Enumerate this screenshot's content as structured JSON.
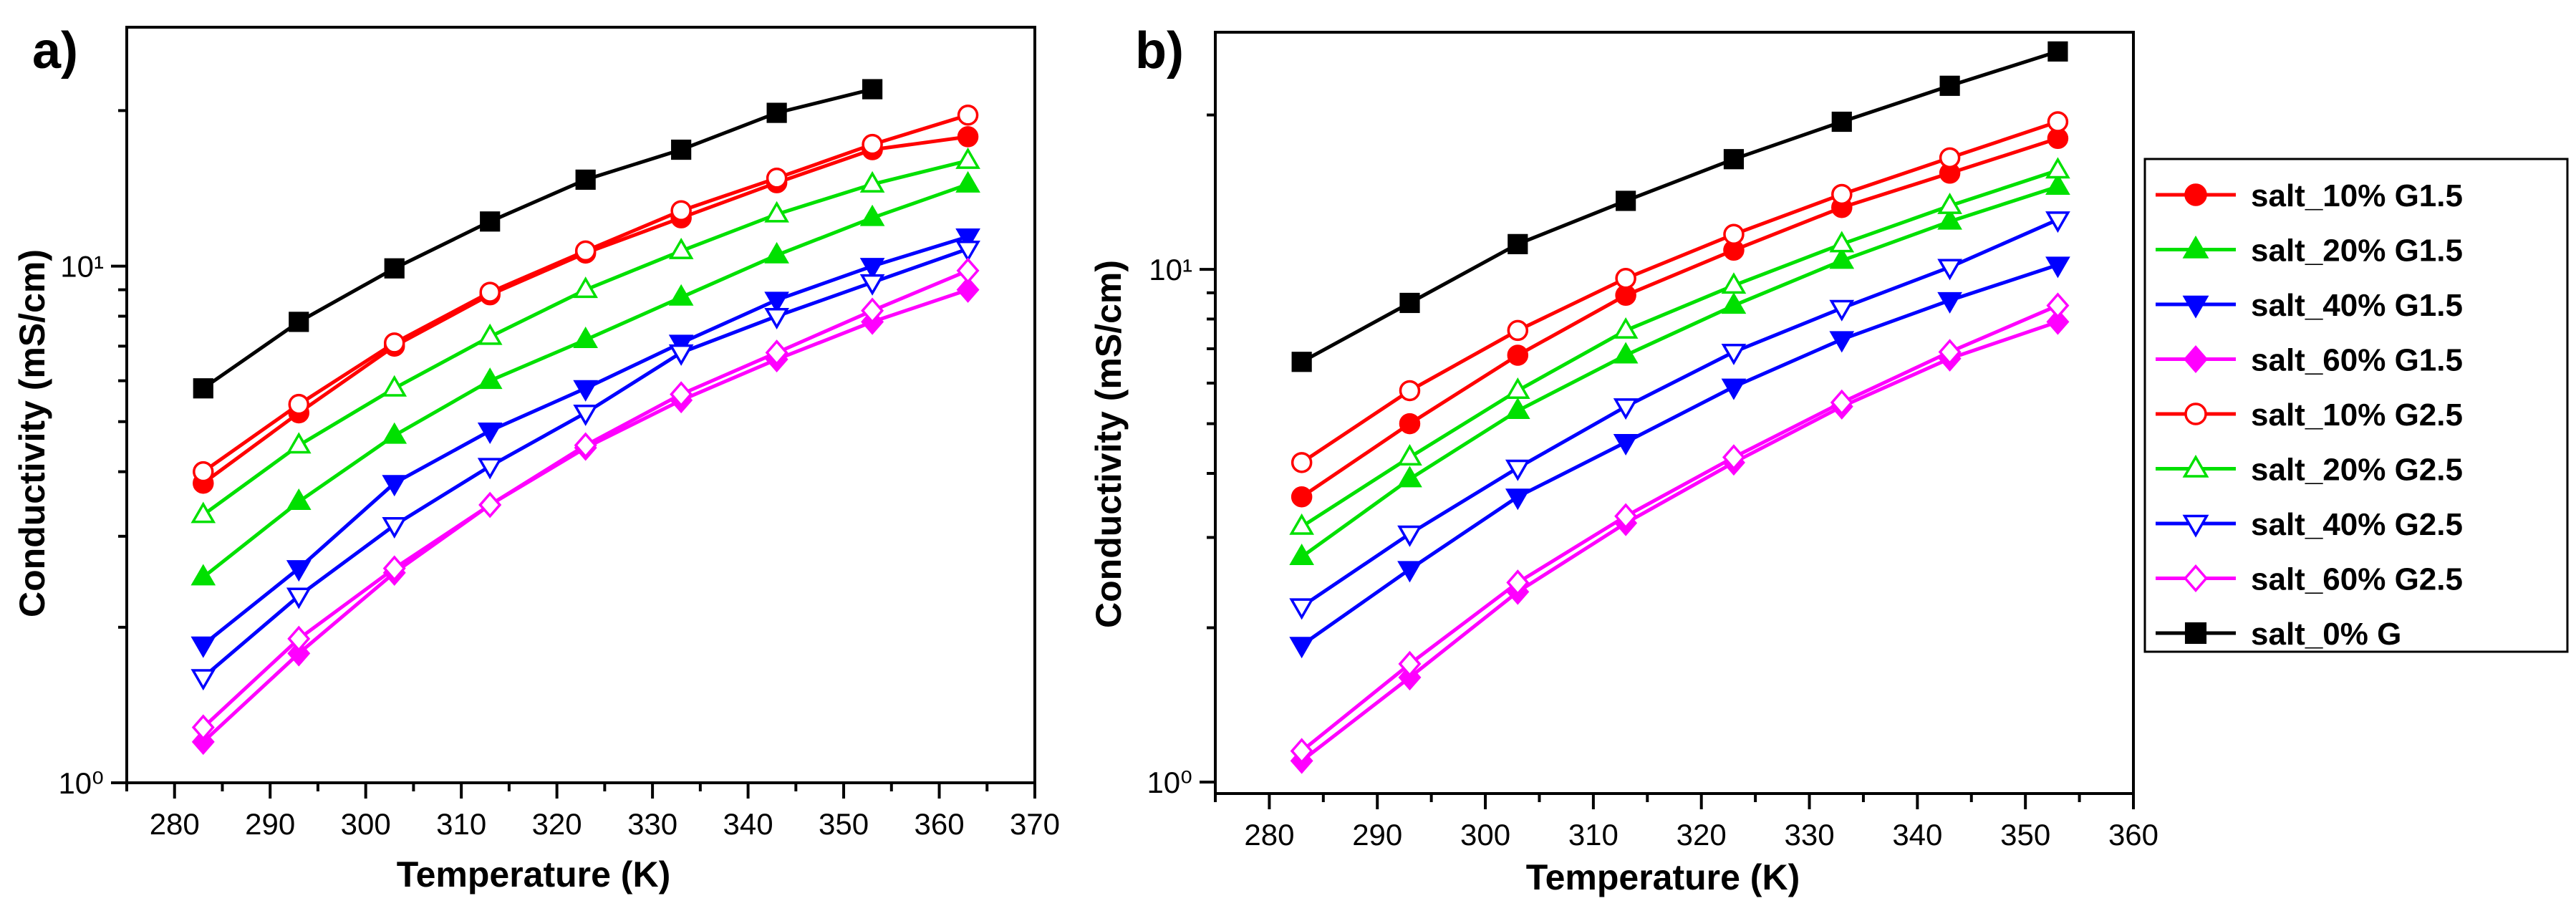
{
  "colors": {
    "salt_10": "#ff0000",
    "salt_20": "#00e000",
    "salt_40": "#0000ff",
    "salt_60": "#ff00ff",
    "salt_0": "#000000"
  },
  "legend": {
    "entries": [
      {
        "label": "salt_10% G1.5",
        "color": "#ff0000",
        "marker": "circle",
        "filled": true
      },
      {
        "label": "salt_20% G1.5",
        "color": "#00e000",
        "marker": "triangle-up",
        "filled": true
      },
      {
        "label": "salt_40% G1.5",
        "color": "#0000ff",
        "marker": "triangle-down",
        "filled": true
      },
      {
        "label": "salt_60% G1.5",
        "color": "#ff00ff",
        "marker": "diamond",
        "filled": true
      },
      {
        "label": "salt_10% G2.5",
        "color": "#ff0000",
        "marker": "circle",
        "filled": false
      },
      {
        "label": "salt_20% G2.5",
        "color": "#00e000",
        "marker": "triangle-up",
        "filled": false
      },
      {
        "label": "salt_40% G2.5",
        "color": "#0000ff",
        "marker": "triangle-down",
        "filled": false
      },
      {
        "label": "salt_60% G2.5",
        "color": "#ff00ff",
        "marker": "diamond",
        "filled": false
      },
      {
        "label": " salt_0% G",
        "color": "#000000",
        "marker": "square",
        "filled": true
      }
    ]
  },
  "chart_data": [
    {
      "panel": "a)",
      "type": "line",
      "xlabel": "Temperature (K)",
      "ylabel": "Conductivity (mS/cm)",
      "yscale": "log",
      "xlim": [
        275,
        370
      ],
      "ylim": [
        1,
        29
      ],
      "xticks": [
        280,
        290,
        300,
        310,
        320,
        330,
        340,
        350,
        360,
        370
      ],
      "yticks": [
        {
          "value": 1,
          "label": "10⁰"
        },
        {
          "value": 10,
          "label": "10¹"
        }
      ],
      "series": [
        {
          "name": "salt_10% G1.5",
          "x": [
            283,
            293,
            303,
            313,
            323,
            333,
            343,
            353,
            363
          ],
          "values": [
            3.8,
            5.2,
            7.0,
            8.8,
            10.6,
            12.4,
            14.5,
            16.8,
            17.8
          ]
        },
        {
          "name": "salt_20% G1.5",
          "x": [
            283,
            293,
            303,
            313,
            323,
            333,
            343,
            353,
            363
          ],
          "values": [
            2.5,
            3.5,
            4.7,
            6.0,
            7.2,
            8.7,
            10.5,
            12.4,
            14.4
          ]
        },
        {
          "name": "salt_40% G1.5",
          "x": [
            283,
            293,
            303,
            313,
            323,
            333,
            343,
            353,
            363
          ],
          "values": [
            1.85,
            2.6,
            3.8,
            4.8,
            5.8,
            7.1,
            8.6,
            10.0,
            11.4
          ]
        },
        {
          "name": "salt_60% G1.5",
          "x": [
            283,
            293,
            303,
            313,
            323,
            333,
            343,
            353,
            363
          ],
          "values": [
            1.2,
            1.78,
            2.55,
            3.45,
            4.45,
            5.5,
            6.6,
            7.8,
            9.0
          ]
        },
        {
          "name": "salt_10% G2.5",
          "x": [
            283,
            293,
            303,
            313,
            323,
            333,
            343,
            353,
            363
          ],
          "values": [
            4.0,
            5.4,
            7.1,
            8.9,
            10.7,
            12.8,
            14.8,
            17.2,
            19.6
          ]
        },
        {
          "name": "salt_20% G2.5",
          "x": [
            283,
            293,
            303,
            313,
            323,
            333,
            343,
            353,
            363
          ],
          "values": [
            3.3,
            4.5,
            5.8,
            7.3,
            9.0,
            10.7,
            12.6,
            14.4,
            16.0
          ]
        },
        {
          "name": "salt_40% G2.5",
          "x": [
            283,
            293,
            303,
            313,
            323,
            333,
            343,
            353,
            363
          ],
          "values": [
            1.6,
            2.3,
            3.15,
            4.1,
            5.2,
            6.8,
            8.0,
            9.3,
            10.8
          ]
        },
        {
          "name": "salt_60% G2.5",
          "x": [
            283,
            293,
            303,
            313,
            323,
            333,
            343,
            353,
            363
          ],
          "values": [
            1.28,
            1.9,
            2.6,
            3.45,
            4.5,
            5.65,
            6.8,
            8.2,
            9.8
          ]
        },
        {
          "name": " salt_0% G",
          "x": [
            283,
            293,
            303,
            313,
            323,
            333,
            343,
            353
          ],
          "values": [
            5.8,
            7.8,
            9.9,
            12.2,
            14.7,
            16.8,
            19.8,
            22.0
          ]
        }
      ]
    },
    {
      "panel": "b)",
      "type": "line",
      "xlabel": "Temperature (K)",
      "ylabel": "Conductivity (mS/cm)",
      "yscale": "log",
      "xlim": [
        275,
        360
      ],
      "ylim": [
        0.95,
        29
      ],
      "xticks": [
        280,
        290,
        300,
        310,
        320,
        330,
        340,
        350,
        360
      ],
      "yticks": [
        {
          "value": 1,
          "label": "10⁰"
        },
        {
          "value": 10,
          "label": "10¹"
        }
      ],
      "series": [
        {
          "name": "salt_10% G1.5",
          "x": [
            283,
            293,
            303,
            313,
            323,
            333,
            343,
            353
          ],
          "values": [
            3.6,
            5.0,
            6.8,
            8.9,
            10.9,
            13.2,
            15.4,
            18.0
          ]
        },
        {
          "name": "salt_20% G1.5",
          "x": [
            283,
            293,
            303,
            313,
            323,
            333,
            343,
            353
          ],
          "values": [
            2.75,
            3.9,
            5.3,
            6.8,
            8.5,
            10.4,
            12.4,
            14.5
          ]
        },
        {
          "name": "salt_40% G1.5",
          "x": [
            283,
            293,
            303,
            313,
            323,
            333,
            343,
            353
          ],
          "values": [
            1.85,
            2.6,
            3.6,
            4.6,
            5.9,
            7.3,
            8.7,
            10.2
          ]
        },
        {
          "name": "salt_60% G1.5",
          "x": [
            283,
            293,
            303,
            313,
            323,
            333,
            343,
            353
          ],
          "values": [
            1.1,
            1.6,
            2.35,
            3.2,
            4.2,
            5.4,
            6.7,
            7.9
          ]
        },
        {
          "name": "salt_10% G2.5",
          "x": [
            283,
            293,
            303,
            313,
            323,
            333,
            343,
            353
          ],
          "values": [
            4.2,
            5.8,
            7.6,
            9.6,
            11.7,
            14.0,
            16.5,
            19.4
          ]
        },
        {
          "name": "salt_20% G2.5",
          "x": [
            283,
            293,
            303,
            313,
            323,
            333,
            343,
            353
          ],
          "values": [
            3.15,
            4.3,
            5.8,
            7.6,
            9.3,
            11.2,
            13.3,
            15.6
          ]
        },
        {
          "name": "salt_40% G2.5",
          "x": [
            283,
            293,
            303,
            313,
            323,
            333,
            343,
            353
          ],
          "values": [
            2.2,
            3.05,
            4.1,
            5.4,
            6.9,
            8.4,
            10.1,
            12.5
          ]
        },
        {
          "name": "salt_60% G2.5",
          "x": [
            283,
            293,
            303,
            313,
            323,
            333,
            343,
            353
          ],
          "values": [
            1.15,
            1.7,
            2.45,
            3.3,
            4.3,
            5.5,
            6.9,
            8.5
          ]
        },
        {
          "name": " salt_0% G",
          "x": [
            283,
            293,
            303,
            313,
            323,
            333,
            343,
            353
          ],
          "values": [
            6.6,
            8.6,
            11.2,
            13.6,
            16.4,
            19.4,
            22.8,
            26.6
          ]
        }
      ]
    }
  ]
}
